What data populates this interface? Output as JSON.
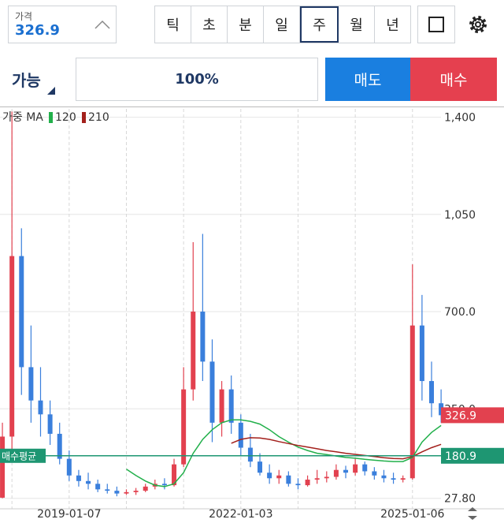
{
  "header": {
    "price_label": "가격",
    "price_value": "326.9",
    "periods": [
      "틱",
      "초",
      "분",
      "일",
      "주",
      "월",
      "년"
    ],
    "selected_period_index": 4
  },
  "order": {
    "qty_label": "가능",
    "percent": "100%",
    "sell": "매도",
    "buy": "매수"
  },
  "chart_data": {
    "type": "candlestick",
    "legend_title": "가중 MA",
    "categories": [
      null,
      null,
      null,
      null,
      null,
      null,
      null,
      "2019-01-07",
      null,
      null,
      null,
      null,
      null,
      null,
      null,
      null,
      null,
      null,
      null,
      null,
      null,
      null,
      null,
      null,
      null,
      "2022-01-03",
      null,
      null,
      null,
      null,
      null,
      null,
      null,
      null,
      null,
      null,
      null,
      null,
      null,
      null,
      null,
      null,
      null,
      "2025-01-06",
      null,
      null,
      null
    ],
    "open": [
      30,
      250,
      900,
      500,
      380,
      330,
      260,
      170,
      110,
      90,
      80,
      60,
      55,
      45,
      50,
      55,
      70,
      80,
      75,
      150,
      420,
      700,
      520,
      300,
      420,
      300,
      210,
      160,
      120,
      100,
      110,
      80,
      75,
      95,
      100,
      105,
      130,
      120,
      150,
      125,
      110,
      100,
      95,
      100,
      650,
      450,
      370
    ],
    "high": [
      300,
      1420,
      1000,
      650,
      500,
      380,
      300,
      200,
      130,
      120,
      95,
      80,
      70,
      60,
      65,
      80,
      95,
      100,
      170,
      500,
      950,
      980,
      600,
      450,
      470,
      330,
      260,
      190,
      150,
      130,
      125,
      100,
      110,
      130,
      125,
      150,
      145,
      170,
      160,
      140,
      130,
      120,
      110,
      870,
      760,
      520,
      420
    ],
    "low": [
      28,
      200,
      400,
      300,
      250,
      220,
      150,
      90,
      70,
      60,
      50,
      45,
      35,
      40,
      40,
      50,
      60,
      60,
      70,
      140,
      380,
      450,
      230,
      250,
      260,
      180,
      140,
      110,
      80,
      80,
      70,
      60,
      70,
      80,
      85,
      95,
      100,
      110,
      110,
      95,
      85,
      80,
      85,
      95,
      380,
      320,
      300
    ],
    "close": [
      250,
      900,
      500,
      380,
      330,
      260,
      170,
      110,
      90,
      80,
      60,
      55,
      45,
      50,
      55,
      70,
      80,
      75,
      150,
      420,
      700,
      520,
      300,
      420,
      300,
      210,
      160,
      120,
      100,
      110,
      80,
      75,
      95,
      100,
      105,
      130,
      120,
      150,
      125,
      110,
      100,
      95,
      100,
      650,
      450,
      370,
      326.9
    ],
    "up_color": "#e2414f",
    "down_color": "#3a7fdc",
    "series": [
      {
        "name": "120",
        "color": "#22b04b",
        "values": [
          null,
          null,
          null,
          null,
          null,
          null,
          null,
          null,
          null,
          null,
          null,
          null,
          null,
          133,
          110,
          90,
          75,
          70,
          80,
          120,
          190,
          240,
          275,
          300,
          310,
          310,
          305,
          295,
          275,
          250,
          230,
          212,
          200,
          190,
          185,
          180,
          175,
          172,
          168,
          165,
          162,
          160,
          160,
          175,
          230,
          265,
          290
        ]
      },
      {
        "name": "210",
        "color": "#a3201c",
        "values": [
          null,
          null,
          null,
          null,
          null,
          null,
          null,
          null,
          null,
          null,
          null,
          null,
          null,
          null,
          null,
          null,
          null,
          null,
          null,
          null,
          null,
          null,
          null,
          null,
          226,
          240,
          246,
          245,
          240,
          232,
          225,
          218,
          212,
          206,
          200,
          195,
          190,
          186,
          182,
          178,
          174,
          171,
          170,
          178,
          195,
          210,
          222
        ]
      }
    ],
    "avg_line": {
      "label": "매수평균",
      "value": 180.9,
      "color": "#1e9672"
    },
    "ylim": [
      -10,
      1430
    ],
    "yticks": [
      {
        "value": 27.8,
        "label": "27.80"
      },
      {
        "value": 350,
        "label": "350.0"
      },
      {
        "value": 700,
        "label": "700.0"
      },
      {
        "value": 1050,
        "label": "1,050"
      },
      {
        "value": 1400,
        "label": "1,400"
      }
    ],
    "grid": true
  }
}
